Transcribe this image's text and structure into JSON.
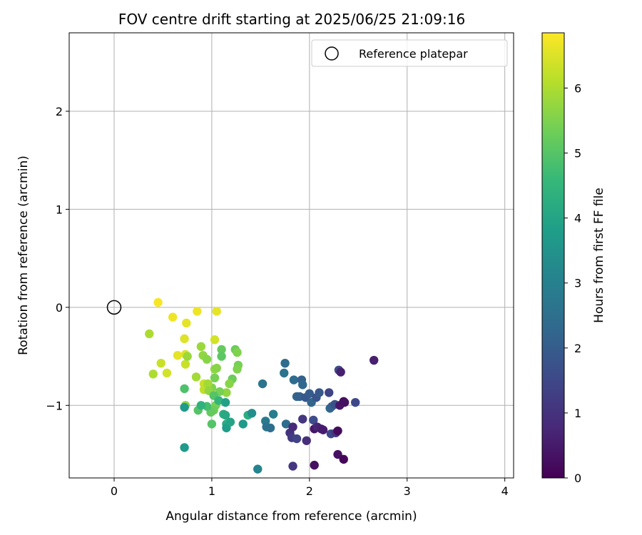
{
  "chart_data": {
    "type": "scatter",
    "title": "FOV centre drift starting at 2025/06/25 21:09:16",
    "xlabel": "Angular distance from reference (arcmin)",
    "ylabel": "Rotation from reference (arcmin)",
    "xlim": [
      -0.46,
      4.09
    ],
    "ylim": [
      -1.74,
      2.8
    ],
    "xticks": [
      0,
      1,
      2,
      3,
      4
    ],
    "yticks": [
      -1,
      0,
      1,
      2
    ],
    "grid": true,
    "legend": {
      "placement": "upper right",
      "entries": [
        "Reference platepar"
      ]
    },
    "reference_point": {
      "x": 0,
      "y": 0
    },
    "colorbar": {
      "label": "Hours from first FF file",
      "range": [
        0,
        6.85
      ],
      "ticks": [
        0,
        1,
        2,
        3,
        4,
        5,
        6
      ],
      "colormap": "viridis",
      "colors": [
        "#440154",
        "#482878",
        "#3e4989",
        "#31688e",
        "#26828e",
        "#1f9e89",
        "#35b779",
        "#6ece58",
        "#b5de2b",
        "#fde725"
      ]
    },
    "points": [
      {
        "x": 0.45,
        "y": 0.05,
        "h": 6.8
      },
      {
        "x": 0.6,
        "y": -0.1,
        "h": 6.7
      },
      {
        "x": 0.74,
        "y": -0.16,
        "h": 6.6
      },
      {
        "x": 0.85,
        "y": -0.04,
        "h": 6.7
      },
      {
        "x": 1.05,
        "y": -0.04,
        "h": 6.6
      },
      {
        "x": 0.36,
        "y": -0.27,
        "h": 6.0
      },
      {
        "x": 0.72,
        "y": -0.32,
        "h": 6.5
      },
      {
        "x": 1.03,
        "y": -0.33,
        "h": 6.4
      },
      {
        "x": 0.65,
        "y": -0.49,
        "h": 6.6
      },
      {
        "x": 0.73,
        "y": -0.48,
        "h": 6.5
      },
      {
        "x": 0.48,
        "y": -0.57,
        "h": 6.3
      },
      {
        "x": 0.54,
        "y": -0.67,
        "h": 6.4
      },
      {
        "x": 0.4,
        "y": -0.68,
        "h": 6.0
      },
      {
        "x": 0.73,
        "y": -0.58,
        "h": 6.3
      },
      {
        "x": 0.84,
        "y": -0.71,
        "h": 5.9
      },
      {
        "x": 0.92,
        "y": -0.78,
        "h": 6.3
      },
      {
        "x": 0.92,
        "y": -0.84,
        "h": 6.2
      },
      {
        "x": 0.89,
        "y": -0.4,
        "h": 5.8
      },
      {
        "x": 0.91,
        "y": -0.49,
        "h": 5.7
      },
      {
        "x": 0.95,
        "y": -0.53,
        "h": 5.6
      },
      {
        "x": 0.75,
        "y": -0.5,
        "h": 5.8
      },
      {
        "x": 1.03,
        "y": -0.63,
        "h": 5.7
      },
      {
        "x": 1.05,
        "y": -0.62,
        "h": 5.6
      },
      {
        "x": 1.1,
        "y": -0.43,
        "h": 5.2
      },
      {
        "x": 1.1,
        "y": -0.5,
        "h": 5.1
      },
      {
        "x": 1.24,
        "y": -0.43,
        "h": 5.3
      },
      {
        "x": 1.26,
        "y": -0.46,
        "h": 5.5
      },
      {
        "x": 1.27,
        "y": -0.59,
        "h": 5.4
      },
      {
        "x": 1.26,
        "y": -0.63,
        "h": 5.5
      },
      {
        "x": 1.21,
        "y": -0.73,
        "h": 5.3
      },
      {
        "x": 1.18,
        "y": -0.78,
        "h": 5.6
      },
      {
        "x": 1.15,
        "y": -0.87,
        "h": 5.7
      },
      {
        "x": 1.03,
        "y": -0.72,
        "h": 5.4
      },
      {
        "x": 1.0,
        "y": -0.82,
        "h": 5.5
      },
      {
        "x": 0.96,
        "y": -0.78,
        "h": 5.9
      },
      {
        "x": 0.97,
        "y": -0.85,
        "h": 5.7
      },
      {
        "x": 1.08,
        "y": -0.86,
        "h": 5.4
      },
      {
        "x": 1.02,
        "y": -0.9,
        "h": 5.0
      },
      {
        "x": 1.04,
        "y": -1.0,
        "h": 5.4
      },
      {
        "x": 1.02,
        "y": -1.05,
        "h": 5.3
      },
      {
        "x": 0.99,
        "y": -1.07,
        "h": 5.2
      },
      {
        "x": 0.95,
        "y": -1.01,
        "h": 4.8
      },
      {
        "x": 0.86,
        "y": -1.05,
        "h": 5.0
      },
      {
        "x": 0.73,
        "y": -1.0,
        "h": 5.6
      },
      {
        "x": 0.89,
        "y": -1.0,
        "h": 4.4
      },
      {
        "x": 0.72,
        "y": -1.02,
        "h": 3.7
      },
      {
        "x": 0.72,
        "y": -0.83,
        "h": 4.9
      },
      {
        "x": 1.0,
        "y": -1.19,
        "h": 5.0
      },
      {
        "x": 1.07,
        "y": -0.95,
        "h": 4.5
      },
      {
        "x": 1.12,
        "y": -1.09,
        "h": 4.3
      },
      {
        "x": 1.14,
        "y": -0.97,
        "h": 3.9
      },
      {
        "x": 1.14,
        "y": -1.1,
        "h": 4.1
      },
      {
        "x": 1.15,
        "y": -1.19,
        "h": 4.2
      },
      {
        "x": 1.15,
        "y": -1.23,
        "h": 3.8
      },
      {
        "x": 1.19,
        "y": -1.17,
        "h": 4.0
      },
      {
        "x": 1.32,
        "y": -1.19,
        "h": 3.7
      },
      {
        "x": 1.37,
        "y": -1.1,
        "h": 4.3
      },
      {
        "x": 1.41,
        "y": -1.08,
        "h": 3.4
      },
      {
        "x": 0.72,
        "y": -1.43,
        "h": 3.7
      },
      {
        "x": 1.47,
        "y": -1.65,
        "h": 3.1
      },
      {
        "x": 1.52,
        "y": -0.78,
        "h": 2.6
      },
      {
        "x": 1.55,
        "y": -1.16,
        "h": 2.8
      },
      {
        "x": 1.56,
        "y": -1.22,
        "h": 2.6
      },
      {
        "x": 1.6,
        "y": -1.23,
        "h": 2.5
      },
      {
        "x": 1.63,
        "y": -1.09,
        "h": 2.9
      },
      {
        "x": 1.74,
        "y": -0.67,
        "h": 2.6
      },
      {
        "x": 1.75,
        "y": -0.57,
        "h": 2.4
      },
      {
        "x": 1.76,
        "y": -1.19,
        "h": 2.4
      },
      {
        "x": 1.8,
        "y": -1.28,
        "h": 1.0
      },
      {
        "x": 1.82,
        "y": -1.33,
        "h": 1.2
      },
      {
        "x": 1.83,
        "y": -1.22,
        "h": 0.8
      },
      {
        "x": 1.84,
        "y": -0.74,
        "h": 2.4
      },
      {
        "x": 1.87,
        "y": -0.91,
        "h": 2.2
      },
      {
        "x": 1.87,
        "y": -1.34,
        "h": 1.4
      },
      {
        "x": 1.9,
        "y": -0.91,
        "h": 2.1
      },
      {
        "x": 1.92,
        "y": -0.74,
        "h": 2.1
      },
      {
        "x": 1.93,
        "y": -0.79,
        "h": 2.3
      },
      {
        "x": 1.93,
        "y": -1.14,
        "h": 1.1
      },
      {
        "x": 1.96,
        "y": -0.92,
        "h": 1.9
      },
      {
        "x": 1.97,
        "y": -1.36,
        "h": 0.9
      },
      {
        "x": 2.0,
        "y": -0.88,
        "h": 2.0
      },
      {
        "x": 2.02,
        "y": -0.97,
        "h": 2.2
      },
      {
        "x": 2.04,
        "y": -1.15,
        "h": 1.6
      },
      {
        "x": 2.05,
        "y": -1.24,
        "h": 0.4
      },
      {
        "x": 2.07,
        "y": -0.92,
        "h": 1.8
      },
      {
        "x": 2.08,
        "y": -1.22,
        "h": 0.7
      },
      {
        "x": 2.1,
        "y": -0.87,
        "h": 1.9
      },
      {
        "x": 2.12,
        "y": -1.24,
        "h": 0.6
      },
      {
        "x": 2.14,
        "y": -1.25,
        "h": 0.5
      },
      {
        "x": 2.2,
        "y": -0.87,
        "h": 1.4
      },
      {
        "x": 2.21,
        "y": -1.03,
        "h": 2.3
      },
      {
        "x": 2.22,
        "y": -1.29,
        "h": 1.5
      },
      {
        "x": 2.23,
        "y": -1.01,
        "h": 2.1
      },
      {
        "x": 2.26,
        "y": -0.99,
        "h": 1.7
      },
      {
        "x": 2.27,
        "y": -1.28,
        "h": 1.1
      },
      {
        "x": 2.29,
        "y": -1.26,
        "h": 0.2
      },
      {
        "x": 2.3,
        "y": -0.64,
        "h": 1.6
      },
      {
        "x": 2.31,
        "y": -1.0,
        "h": 0.4
      },
      {
        "x": 2.32,
        "y": -0.66,
        "h": 0.6
      },
      {
        "x": 2.35,
        "y": -0.96,
        "h": 0.2
      },
      {
        "x": 2.36,
        "y": -0.97,
        "h": 0.3
      },
      {
        "x": 2.29,
        "y": -1.5,
        "h": 0.3
      },
      {
        "x": 2.35,
        "y": -1.55,
        "h": 0.1
      },
      {
        "x": 2.47,
        "y": -0.97,
        "h": 1.5
      },
      {
        "x": 2.66,
        "y": -0.54,
        "h": 0.6
      },
      {
        "x": 1.83,
        "y": -1.62,
        "h": 1.1
      },
      {
        "x": 2.05,
        "y": -1.61,
        "h": 0.3
      }
    ]
  }
}
